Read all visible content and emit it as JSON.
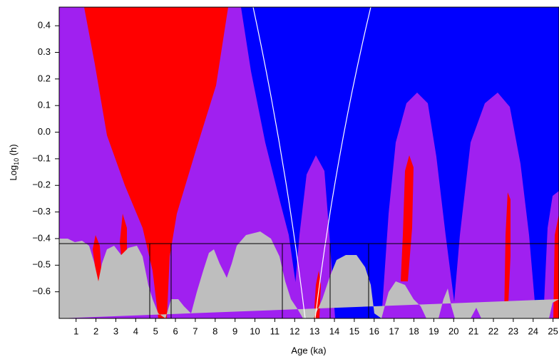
{
  "chart_data": {
    "type": "map",
    "x_label": "Age (ka)",
    "y_label": {
      "base": "Log",
      "sub": "10",
      "rest": " (h)"
    },
    "xlim": [
      0.15,
      25.3
    ],
    "ylim": [
      -0.7,
      0.47
    ],
    "xticks": [
      1,
      2,
      3,
      4,
      5,
      6,
      7,
      8,
      9,
      10,
      11,
      12,
      13,
      14,
      15,
      16,
      17,
      18,
      19,
      20,
      21,
      22,
      23,
      24,
      25
    ],
    "yticks": [
      {
        "value": -0.6,
        "label": "−0.6"
      },
      {
        "value": -0.5,
        "label": "−0.5"
      },
      {
        "value": -0.4,
        "label": "−0.4"
      },
      {
        "value": -0.3,
        "label": "−0.3"
      },
      {
        "value": -0.2,
        "label": "−0.2"
      },
      {
        "value": -0.1,
        "label": "−0.1"
      },
      {
        "value": 0,
        "label": "0.0"
      },
      0.1,
      0.2,
      0.3,
      0.4
    ]
  }
}
